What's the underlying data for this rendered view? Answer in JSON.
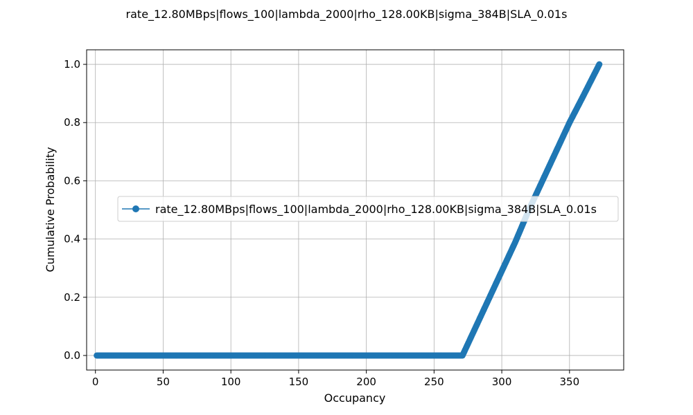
{
  "chart_data": {
    "type": "line",
    "title": "rate_12.80MBps|flows_100|lambda_2000|rho_128.00KB|sigma_384B|SLA_0.01s",
    "xlabel": "Occupancy",
    "ylabel": "Cumulative Probability",
    "xlim": [
      -6.5,
      390
    ],
    "ylim": [
      -0.05,
      1.05
    ],
    "xticks": [
      0,
      50,
      100,
      150,
      200,
      250,
      300,
      350
    ],
    "yticks": [
      0.0,
      0.2,
      0.4,
      0.6,
      0.8,
      1.0
    ],
    "xtick_labels": [
      "0",
      "50",
      "100",
      "150",
      "200",
      "250",
      "300",
      "350"
    ],
    "ytick_labels": [
      "0.0",
      "0.2",
      "0.4",
      "0.6",
      "0.8",
      "1.0"
    ],
    "grid": true,
    "legend_position": "center-right",
    "series": [
      {
        "name": "rate_12.80MBps|flows_100|lambda_2000|rho_128.00KB|sigma_384B|SLA_0.01s",
        "color": "#1f77b4",
        "marker": "circle",
        "x": [
          1,
          50,
          100,
          150,
          200,
          250,
          271,
          272,
          280,
          290,
          300,
          310,
          320,
          330,
          340,
          350,
          360,
          372
        ],
        "y": [
          0.0,
          0.0,
          0.0,
          0.0,
          0.0,
          0.0,
          0.0,
          0.01,
          0.09,
          0.19,
          0.29,
          0.39,
          0.5,
          0.6,
          0.7,
          0.8,
          0.89,
          1.0
        ]
      }
    ]
  }
}
